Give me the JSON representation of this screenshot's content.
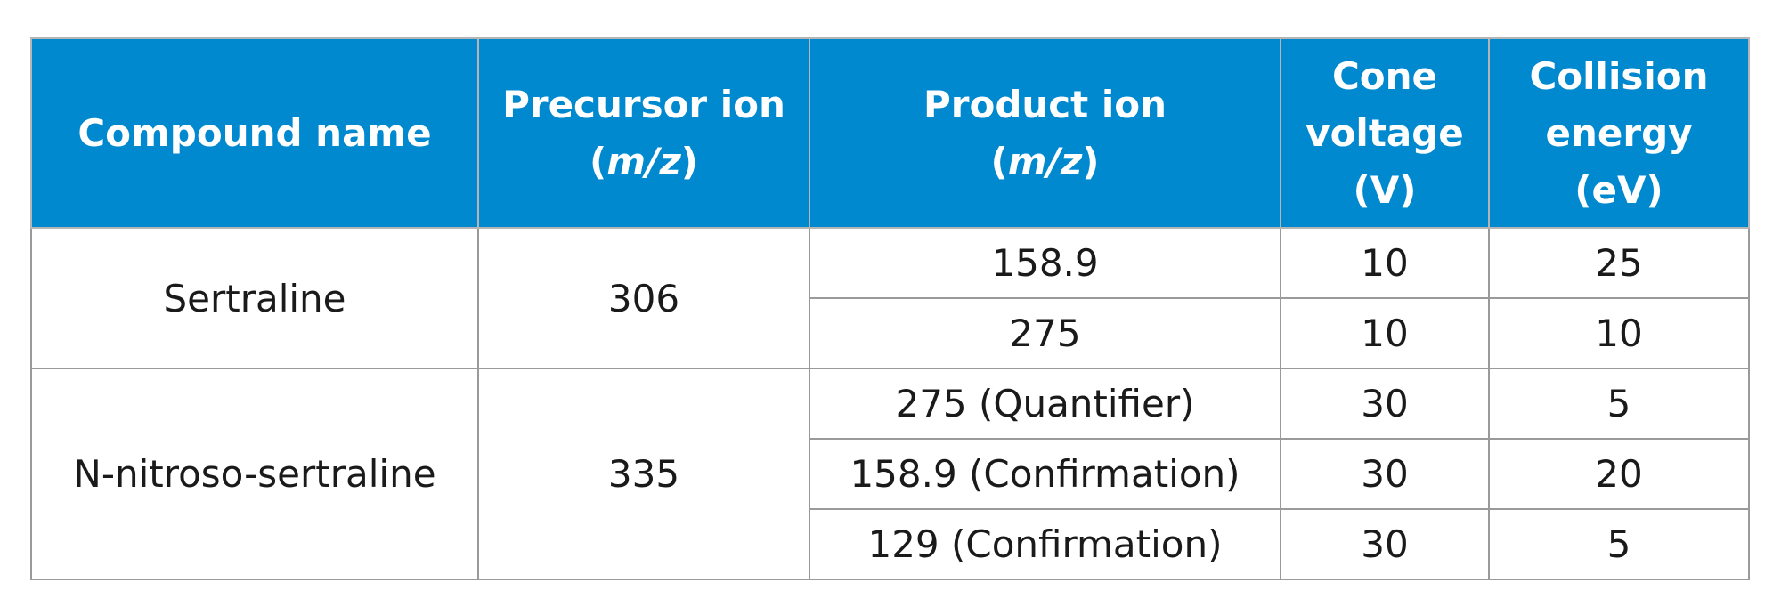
{
  "table": {
    "header": [
      {
        "lines": [
          "Compound name"
        ]
      },
      {
        "lines": [
          "Precursor ion"
        ],
        "unit": {
          "open": "(",
          "italic": "m/z",
          "close": ")"
        }
      },
      {
        "lines": [
          "Product ion"
        ],
        "unit": {
          "open": "(",
          "italic": "m/z",
          "close": ")"
        }
      },
      {
        "lines": [
          "Cone",
          "voltage",
          "(V)"
        ]
      },
      {
        "lines": [
          "Collision",
          "energy",
          "(eV)"
        ]
      }
    ],
    "groups": [
      {
        "compound": "Sertraline",
        "precursor": 306,
        "transitions": [
          {
            "product": 158.9,
            "cone": 10,
            "collision": 25
          },
          {
            "product": 275,
            "cone": 10,
            "collision": 10
          }
        ]
      },
      {
        "compound": "N-nitroso-sertraline",
        "precursor": 335,
        "transitions": [
          {
            "product": "275 (Quantifier)",
            "cone": 30,
            "collision": 5
          },
          {
            "product": "158.9 (Confirmation)",
            "cone": 30,
            "collision": 20
          },
          {
            "product": "129 (Confirmation)",
            "cone": 30,
            "collision": 5
          }
        ]
      }
    ]
  }
}
